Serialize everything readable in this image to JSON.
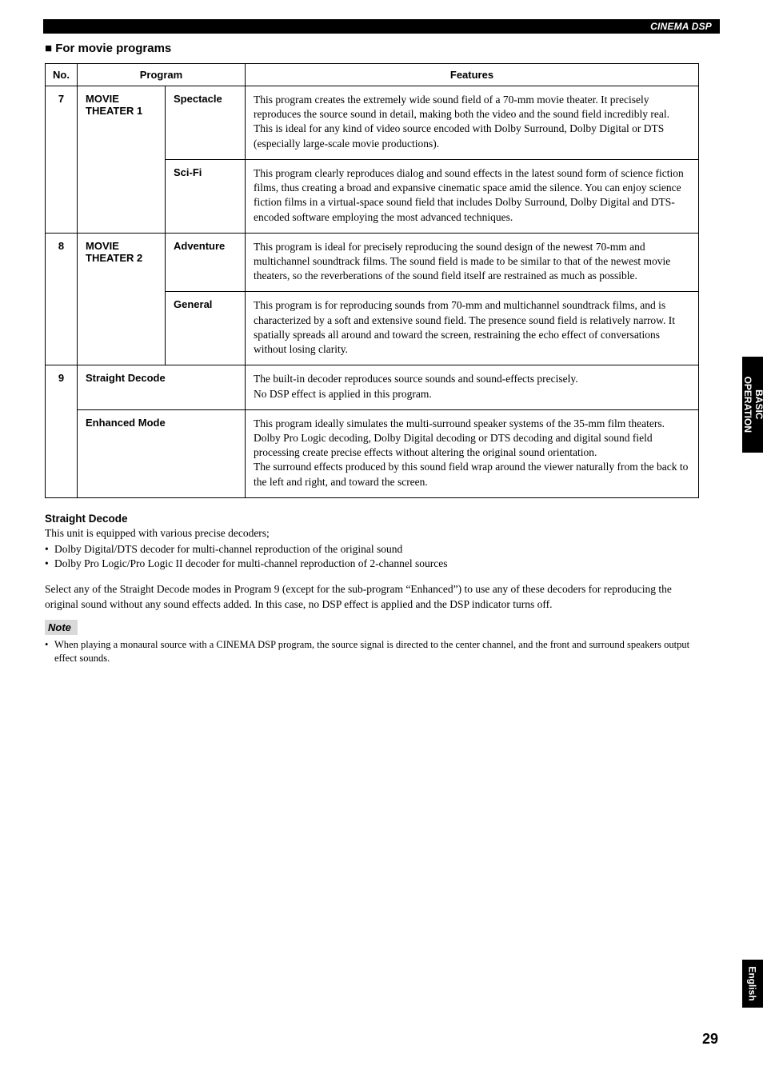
{
  "header": {
    "title": "CINEMA DSP"
  },
  "section_heading": "■ For movie programs",
  "columns": {
    "no": "No.",
    "program": "Program",
    "features": "Features"
  },
  "rows": [
    {
      "no": "7",
      "group": "MOVIE THEATER 1",
      "subs": [
        {
          "name": "Spectacle",
          "feature": "This program creates the extremely wide sound field of a 70-mm movie theater. It precisely reproduces the source sound in detail, making both the video and the sound field incredibly real. This is ideal for any kind of video source encoded with Dolby Surround, Dolby Digital or DTS (especially large-scale movie productions)."
        },
        {
          "name": "Sci-Fi",
          "feature": "This program clearly reproduces dialog and sound effects in the latest sound form of science fiction films, thus creating a broad and expansive cinematic space amid the silence. You can enjoy science fiction films in a virtual-space sound field that includes Dolby Surround, Dolby Digital and DTS-encoded software employing the most advanced techniques."
        }
      ]
    },
    {
      "no": "8",
      "group": "MOVIE THEATER 2",
      "subs": [
        {
          "name": "Adventure",
          "feature": "This program is ideal for precisely reproducing the sound design of the newest 70-mm and multichannel soundtrack films. The sound field is made to be similar to that of the newest movie theaters, so the reverberations of the sound field itself are restrained as much as possible."
        },
        {
          "name": "General",
          "feature": "This program is for reproducing sounds from 70-mm and multichannel soundtrack films, and is characterized by a soft and extensive sound field. The presence sound field is relatively narrow. It spatially spreads all around and toward the screen, restraining the echo effect of conversations without losing clarity."
        }
      ]
    },
    {
      "no": "9",
      "wide": [
        {
          "name": "Straight Decode",
          "feature": "The built-in decoder reproduces source sounds and sound-effects precisely.\nNo DSP effect is applied in this program."
        },
        {
          "name": "Enhanced Mode",
          "feature": "This program ideally simulates the multi-surround speaker systems of the 35-mm film theaters. Dolby Pro Logic decoding, Dolby Digital decoding or DTS decoding and digital sound field processing create precise effects without altering the original sound orientation.\nThe surround effects produced by this sound field wrap around the viewer naturally from the back to the left and right, and toward the screen."
        }
      ]
    }
  ],
  "straight": {
    "heading": "Straight Decode",
    "intro": "This unit is equipped with various precise decoders;",
    "bullets": [
      "Dolby Digital/DTS decoder for multi-channel reproduction of the original sound",
      "Dolby Pro Logic/Pro Logic II decoder for multi-channel reproduction of 2-channel sources"
    ],
    "para": "Select any of the Straight Decode modes in Program 9 (except for the sub-program “Enhanced”) to use any of these decoders for reproducing the original sound without any sound effects added. In this case, no DSP effect is applied and the DSP indicator turns off."
  },
  "note": {
    "label": "Note",
    "items": [
      "When playing a monaural source with a CINEMA DSP program, the source signal is directed to the center channel, and the front and surround speakers output effect sounds."
    ]
  },
  "side_tab": {
    "line1": "BASIC",
    "line2": "OPERATION"
  },
  "lang_tab": "English",
  "page_number": "29"
}
